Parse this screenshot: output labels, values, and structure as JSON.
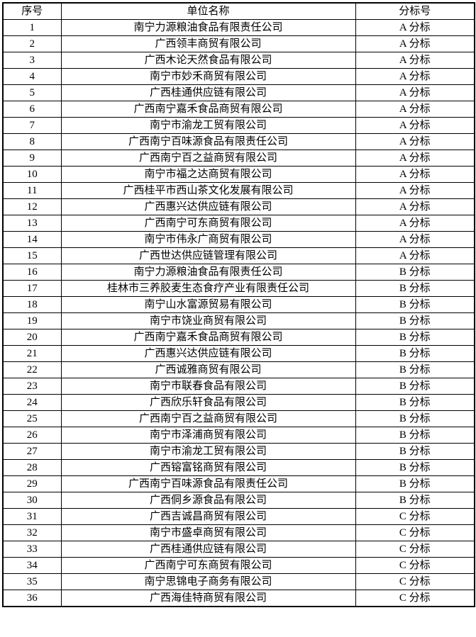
{
  "colors": {
    "border": "#000000",
    "text": "#000000",
    "background": "#ffffff"
  },
  "table": {
    "headers": {
      "no": "序号",
      "name": "单位名称",
      "section": "分标号"
    },
    "rows": [
      {
        "no": "1",
        "name": "南宁力源粮油食品有限责任公司",
        "section": "A 分标"
      },
      {
        "no": "2",
        "name": "广西领丰商贸有限公司",
        "section": "A 分标"
      },
      {
        "no": "3",
        "name": "广西木论天然食品有限公司",
        "section": "A 分标"
      },
      {
        "no": "4",
        "name": "南宁市妙禾商贸有限公司",
        "section": "A 分标"
      },
      {
        "no": "5",
        "name": "广西桂通供应链有限公司",
        "section": "A 分标"
      },
      {
        "no": "6",
        "name": "广西南宁嘉禾食品商贸有限公司",
        "section": "A 分标"
      },
      {
        "no": "7",
        "name": "南宁市渝龙工贸有限公司",
        "section": "A 分标"
      },
      {
        "no": "8",
        "name": "广西南宁百味源食品有限责任公司",
        "section": "A 分标"
      },
      {
        "no": "9",
        "name": "广西南宁百之益商贸有限公司",
        "section": "A 分标"
      },
      {
        "no": "10",
        "name": "南宁市福之达商贸有限公司",
        "section": "A 分标"
      },
      {
        "no": "11",
        "name": "广西桂平市西山茶文化发展有限公司",
        "section": "A 分标"
      },
      {
        "no": "12",
        "name": "广西惠兴达供应链有限公司",
        "section": "A 分标"
      },
      {
        "no": "13",
        "name": "广西南宁可东商贸有限公司",
        "section": "A 分标"
      },
      {
        "no": "14",
        "name": "南宁市伟永广商贸有限公司",
        "section": "A 分标"
      },
      {
        "no": "15",
        "name": "广西世达供应链管理有限公司",
        "section": "A 分标"
      },
      {
        "no": "16",
        "name": "南宁力源粮油食品有限责任公司",
        "section": "B 分标"
      },
      {
        "no": "17",
        "name": "桂林市三养胶麦生态食疗产业有限责任公司",
        "section": "B 分标"
      },
      {
        "no": "18",
        "name": "南宁山水富源贸易有限公司",
        "section": "B 分标"
      },
      {
        "no": "19",
        "name": "南宁市饶业商贸有限公司",
        "section": "B 分标"
      },
      {
        "no": "20",
        "name": "广西南宁嘉禾食品商贸有限公司",
        "section": "B 分标"
      },
      {
        "no": "21",
        "name": "广西惠兴达供应链有限公司",
        "section": "B 分标"
      },
      {
        "no": "22",
        "name": "广西诚雅商贸有限公司",
        "section": "B 分标"
      },
      {
        "no": "23",
        "name": "南宁市联春食品有限公司",
        "section": "B 分标"
      },
      {
        "no": "24",
        "name": "广西欣乐轩食品有限公司",
        "section": "B 分标"
      },
      {
        "no": "25",
        "name": "广西南宁百之益商贸有限公司",
        "section": "B 分标"
      },
      {
        "no": "26",
        "name": "南宁市泽浦商贸有限公司",
        "section": "B 分标"
      },
      {
        "no": "27",
        "name": "南宁市渝龙工贸有限公司",
        "section": "B 分标"
      },
      {
        "no": "28",
        "name": "广西镕富铭商贸有限公司",
        "section": "B 分标"
      },
      {
        "no": "29",
        "name": "广西南宁百味源食品有限责任公司",
        "section": "B 分标"
      },
      {
        "no": "30",
        "name": "广西侗乡源食品有限公司",
        "section": "B 分标"
      },
      {
        "no": "31",
        "name": "广西吉诚昌商贸有限公司",
        "section": "C 分标"
      },
      {
        "no": "32",
        "name": "南宁市盛卓商贸有限公司",
        "section": "C 分标"
      },
      {
        "no": "33",
        "name": "广西桂通供应链有限公司",
        "section": "C 分标"
      },
      {
        "no": "34",
        "name": "广西南宁可东商贸有限公司",
        "section": "C 分标"
      },
      {
        "no": "35",
        "name": "南宁思锦电子商务有限公司",
        "section": "C 分标"
      },
      {
        "no": "36",
        "name": "广西海佳特商贸有限公司",
        "section": "C 分标"
      }
    ]
  }
}
